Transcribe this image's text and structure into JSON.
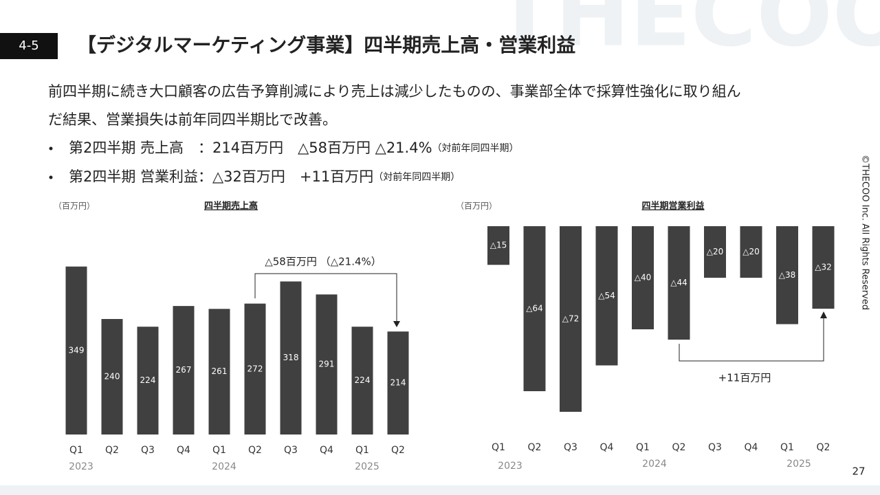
{
  "header": {
    "section": "4-5",
    "title": "【デジタルマーケティング事業】四半期売上高・営業利益"
  },
  "watermark": "THECOO",
  "summary": [
    "前四半期に続き大口顧客の広告予算削減により売上は減少したものの、事業部全体で採算性強化に取り組ん",
    "だ結果、営業損失は前年同四半期比で改善。"
  ],
  "bullets": [
    {
      "text": "第2四半期 売上高　：214百万円　△58百万円 △21.4%",
      "note": "（対前年同四半期）"
    },
    {
      "text": "第2四半期 営業利益：△32百万円　+11百万円",
      "note": "（対前年同四半期）"
    }
  ],
  "chart_data": [
    {
      "type": "bar",
      "title": "四半期売上高",
      "unit": "（百万円）",
      "categories": [
        "Q1",
        "Q2",
        "Q3",
        "Q4",
        "Q1",
        "Q2",
        "Q3",
        "Q4",
        "Q1",
        "Q2"
      ],
      "years": [
        "2023",
        null,
        null,
        null,
        "2024",
        null,
        null,
        null,
        "2025",
        null
      ],
      "values": [
        349,
        240,
        224,
        267,
        261,
        272,
        318,
        291,
        224,
        214
      ],
      "color": "#404040",
      "annotation": "△58百万円 （△21.4%）"
    },
    {
      "type": "bar",
      "title": "四半期営業利益",
      "unit": "（百万円）",
      "categories": [
        "Q1",
        "Q2",
        "Q3",
        "Q4",
        "Q1",
        "Q2",
        "Q3",
        "Q4",
        "Q1",
        "Q2"
      ],
      "years": [
        "2023",
        null,
        null,
        null,
        "2024",
        null,
        null,
        null,
        "2025",
        null
      ],
      "values": [
        -15,
        -64,
        -72,
        -54,
        -40,
        -44,
        -20,
        -20,
        -38,
        -32
      ],
      "value_labels": [
        "△15",
        "△64",
        "△72",
        "△54",
        "△40",
        "△44",
        "△20",
        "△20",
        "△38",
        "△32"
      ],
      "color": "#404040",
      "annotation": "+11百万円"
    }
  ],
  "copyright": "©THECOO Inc. All Rights Reserved",
  "page_number": "27"
}
